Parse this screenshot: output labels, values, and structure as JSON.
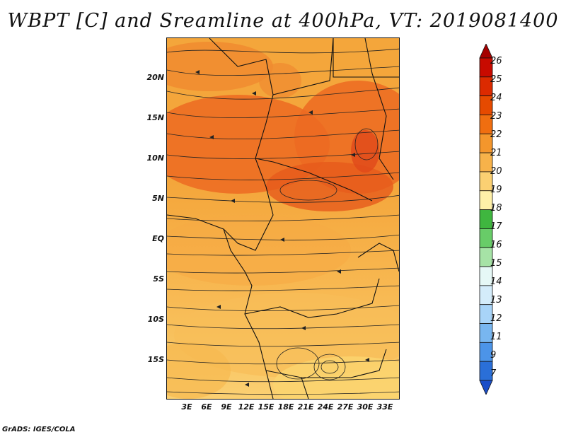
{
  "title": "WBPT [C] and Sreamline at 400hPa, VT: 2019081400",
  "footer": "GrADS: IGES/COLA",
  "lat_labels": [
    "20N",
    "15N",
    "10N",
    "5N",
    "EQ",
    "5S",
    "10S",
    "15S"
  ],
  "lat_values": [
    20,
    15,
    10,
    5,
    0,
    -5,
    -10,
    -15
  ],
  "lon_labels": [
    "3E",
    "6E",
    "9E",
    "12E",
    "15E",
    "18E",
    "21E",
    "24E",
    "27E",
    "30E",
    "33E"
  ],
  "lon_values": [
    3,
    6,
    9,
    12,
    15,
    18,
    21,
    24,
    27,
    30,
    33
  ],
  "colorbar": {
    "labels": [
      "26",
      "25",
      "24",
      "23",
      "22",
      "21",
      "20",
      "19",
      "18",
      "17",
      "16",
      "15",
      "14",
      "13",
      "12",
      "11",
      "9",
      "7"
    ],
    "colors": [
      "#a50000",
      "#c80a00",
      "#dc2a00",
      "#e64a00",
      "#f06e10",
      "#f4962c",
      "#f7b24a",
      "#fbd072",
      "#fff0a8",
      "#3fb63f",
      "#68cc68",
      "#a6e3a6",
      "#e6f8f6",
      "#d4ecfa",
      "#a8d4f8",
      "#78b6f0",
      "#4c94e8",
      "#2a6fd8",
      "#1a4ec8"
    ]
  },
  "colors": {
    "hot": "#e8541a",
    "warm": "#f4963a",
    "mild": "#f7b24a",
    "cool": "#fbd072"
  }
}
